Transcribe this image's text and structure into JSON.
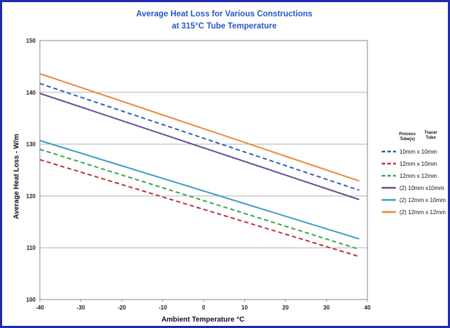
{
  "chart_data": {
    "type": "line",
    "title": [
      "Average Heat Loss for Various Constructions",
      "at 315°C Tube Temperature"
    ],
    "xlabel": "Ambient Temperature  °C",
    "ylabel": "Average Heat Loss - W/m",
    "xlim": [
      -40,
      40
    ],
    "ylim": [
      100,
      150
    ],
    "xticks": [
      -40,
      -30,
      -20,
      -10,
      0,
      10,
      20,
      30,
      40
    ],
    "yticks": [
      100,
      110,
      120,
      130,
      140,
      150
    ],
    "grid": "horizontal",
    "legend_position": "right",
    "legend_headers": [
      [
        "Process",
        "Tube(s)"
      ],
      [
        "Tracer",
        "Tube"
      ]
    ],
    "series": [
      {
        "name": "10mm x 10mm",
        "color": "#2f64b8",
        "dash": true,
        "x": [
          -40,
          38
        ],
        "y": [
          141.7,
          121.1
        ]
      },
      {
        "name": "12mm x 10mm",
        "color": "#c0333a",
        "dash": true,
        "x": [
          -40,
          38
        ],
        "y": [
          127.0,
          108.3
        ]
      },
      {
        "name": "12mm x 12mm",
        "color": "#3aa84a",
        "dash": true,
        "x": [
          -40,
          38
        ],
        "y": [
          129.0,
          109.7
        ]
      },
      {
        "name": "(2) 10mm x10mm",
        "color": "#6a4d96",
        "dash": false,
        "x": [
          -40,
          38
        ],
        "y": [
          139.8,
          119.3
        ]
      },
      {
        "name": "(2) 12mm x 10mm",
        "color": "#3d9ec6",
        "dash": false,
        "x": [
          -40,
          38
        ],
        "y": [
          130.7,
          111.7
        ]
      },
      {
        "name": "(2) 12mm x 12mm",
        "color": "#e8873a",
        "dash": false,
        "x": [
          -40,
          38
        ],
        "y": [
          143.6,
          122.9
        ]
      }
    ]
  }
}
